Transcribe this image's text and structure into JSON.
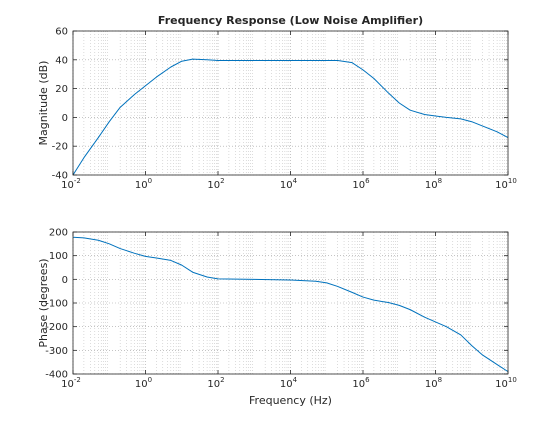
{
  "chart_data": [
    {
      "type": "line",
      "title": "Frequency Response (Low Noise Amplifier)",
      "xlabel": "",
      "ylabel": "Magnitude (dB)",
      "xscale": "log",
      "xlim": [
        0.01,
        10000000000
      ],
      "ylim": [
        -40,
        60
      ],
      "grid": true,
      "x_ticks": [
        {
          "base": "10",
          "exp": "-2"
        },
        {
          "base": "10",
          "exp": "0"
        },
        {
          "base": "10",
          "exp": "2"
        },
        {
          "base": "10",
          "exp": "4"
        },
        {
          "base": "10",
          "exp": "6"
        },
        {
          "base": "10",
          "exp": "8"
        },
        {
          "base": "10",
          "exp": "10"
        }
      ],
      "y_ticks": [
        "-40",
        "-20",
        "0",
        "20",
        "40",
        "60"
      ],
      "line_color": "#0072bd",
      "series": [
        {
          "x": [
            0.01,
            0.02,
            0.05,
            0.1,
            0.2,
            0.5,
            1,
            2,
            5,
            10,
            20,
            50,
            100,
            1000,
            10000,
            100000,
            200000,
            500000,
            1000000,
            2000000,
            5000000,
            10000000,
            20000000,
            50000000,
            100000000,
            200000000,
            500000000,
            1000000000,
            2000000000,
            5000000000,
            10000000000
          ],
          "y": [
            -40,
            -28,
            -14,
            -3,
            7,
            16,
            22,
            28,
            35,
            39,
            40.5,
            40,
            39.5,
            39.5,
            39.5,
            39.5,
            39.5,
            38,
            33,
            27,
            17,
            10,
            5,
            2,
            1,
            0,
            -1,
            -3,
            -6,
            -10,
            -14
          ]
        }
      ]
    },
    {
      "type": "line",
      "title": "",
      "xlabel": "Frequency (Hz)",
      "ylabel": "Phase (degrees)",
      "xscale": "log",
      "xlim": [
        0.01,
        10000000000
      ],
      "ylim": [
        -400,
        200
      ],
      "grid": true,
      "x_ticks": [
        {
          "base": "10",
          "exp": "-2"
        },
        {
          "base": "10",
          "exp": "0"
        },
        {
          "base": "10",
          "exp": "2"
        },
        {
          "base": "10",
          "exp": "4"
        },
        {
          "base": "10",
          "exp": "6"
        },
        {
          "base": "10",
          "exp": "8"
        },
        {
          "base": "10",
          "exp": "10"
        }
      ],
      "y_ticks": [
        "-400",
        "-300",
        "-200",
        "-100",
        "0",
        "100",
        "200"
      ],
      "line_color": "#0072bd",
      "series": [
        {
          "x": [
            0.01,
            0.02,
            0.05,
            0.1,
            0.2,
            0.5,
            1,
            2,
            5,
            10,
            20,
            50,
            100,
            1000,
            10000,
            50000,
            100000,
            200000,
            500000,
            1000000,
            2000000,
            5000000,
            10000000,
            20000000,
            50000000,
            100000000,
            200000000,
            500000000,
            1000000000,
            2000000000,
            5000000000,
            10000000000
          ],
          "y": [
            178,
            175,
            165,
            150,
            130,
            110,
            97,
            90,
            80,
            60,
            30,
            10,
            2,
            0,
            -3,
            -8,
            -15,
            -30,
            -55,
            -75,
            -88,
            -98,
            -110,
            -128,
            -160,
            -180,
            -200,
            -235,
            -280,
            -320,
            -360,
            -390
          ]
        }
      ]
    }
  ]
}
